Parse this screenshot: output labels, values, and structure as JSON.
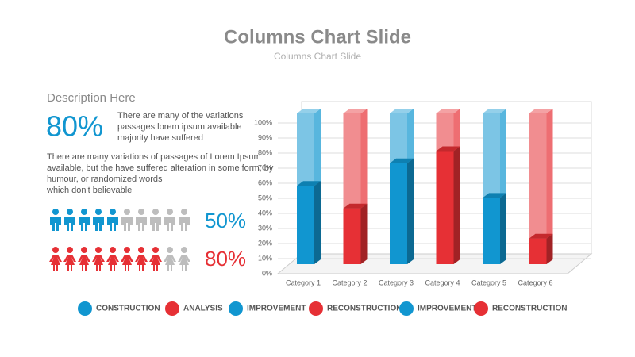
{
  "header": {
    "title": "Columns Chart Slide",
    "subtitle": "Columns Chart Slide"
  },
  "description": {
    "heading": "Description Here",
    "highlight": "80%",
    "highlight_text": [
      "There are many of the variations",
      "passages lorem ipsum available",
      "majority have suffered"
    ],
    "paragraph": [
      "There are many variations of passages  of Lorem Ipsum",
      "available, but the have suffered alteration in some  form, by",
      "humour, or randomized words",
      " which  don't believable"
    ]
  },
  "infographic": [
    {
      "value": 50,
      "label": "50%",
      "color": "#1196d0",
      "figure": "male"
    },
    {
      "value": 80,
      "label": "80%",
      "color": "#e63035",
      "figure": "female"
    }
  ],
  "chart_data": {
    "type": "bar3d",
    "categories": [
      "Category 1",
      "Category 2",
      "Category 3",
      "Category 4",
      "Category 5",
      "Category 6"
    ],
    "series": [
      {
        "name": "CONSTRUCTION",
        "color": "#1196d0",
        "values": [
          52,
          null,
          null,
          null,
          null,
          null
        ]
      },
      {
        "name": "ANALYSIS",
        "color": "#e63035",
        "values": [
          null,
          37,
          null,
          null,
          null,
          null
        ]
      },
      {
        "name": "IMPROVEMENT",
        "color": "#1196d0",
        "values": [
          null,
          null,
          67,
          null,
          null,
          null
        ]
      },
      {
        "name": "RECONSTRUCTION",
        "color": "#e63035",
        "values": [
          null,
          null,
          null,
          75,
          null,
          null
        ]
      },
      {
        "name": "IMPROVEMENT",
        "color": "#1196d0",
        "values": [
          null,
          null,
          null,
          null,
          44,
          null
        ]
      },
      {
        "name": "RECONSTRUCTION",
        "color": "#e63035",
        "values": [
          null,
          null,
          null,
          null,
          null,
          17
        ]
      }
    ],
    "ylim": [
      0,
      100
    ],
    "yticks": [
      {
        "value": 0,
        "label": "0%"
      },
      {
        "value": 10,
        "label": "10%"
      },
      {
        "value": 20,
        "label": "20%"
      },
      {
        "value": 30,
        "label": "30%"
      },
      {
        "value": 40,
        "label": "40%"
      },
      {
        "value": 50,
        "label": "50%"
      },
      {
        "value": 60,
        "label": "60%"
      },
      {
        "value": 70,
        "label": "70%"
      },
      {
        "value": 80,
        "label": "80%"
      },
      {
        "value": 90,
        "label": "90%"
      },
      {
        "value": 100,
        "label": "100%"
      }
    ],
    "grid": true
  }
}
